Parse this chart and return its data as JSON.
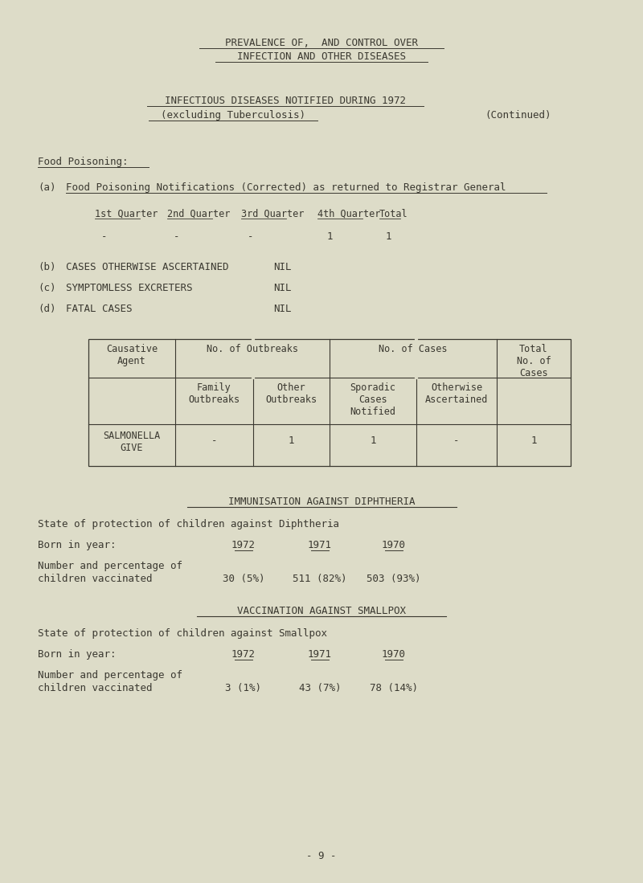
{
  "bg_color": "#dddcc8",
  "text_color": "#3a3830",
  "title1": "PREVALENCE OF,  AND CONTROL OVER",
  "title2": "INFECTION AND OTHER DISEASES",
  "subtitle1": "INFECTIOUS DISEASES NOTIFIED DURING 1972",
  "subtitle2": "(excluding Tuberculosis)",
  "continued": "(Continued)",
  "section_food": "Food Poisoning:",
  "section_a_label": "(a)",
  "section_a_text": "Food Poisoning Notifications (Corrected) as returned to Registrar General",
  "quarter_headers": [
    "1st Quarter",
    "2nd Quarter",
    "3rd Quarter",
    "4th Quarter",
    "Total"
  ],
  "quarter_values": [
    "-",
    "-",
    "-",
    "1",
    "1"
  ],
  "section_b_label": "(b)",
  "section_b_text": "CASES OTHERWISE ASCERTAINED",
  "b_value": "NIL",
  "section_c_label": "(c)",
  "section_c_text": "SYMPTOMLESS EXCRETERS",
  "c_value": "NIL",
  "section_d_label": "(d)",
  "section_d_text": "FATAL CASES",
  "d_value": "NIL",
  "table_data": [
    "SALMONELLA\nGIVE",
    "-",
    "1",
    "1",
    "-",
    "1"
  ],
  "immunisation_title": "IMMUNISATION AGAINST DIPHTHERIA",
  "immunisation_state": "State of protection of children against Diphtheria",
  "born_in_year": "Born in year:",
  "diph_years": [
    "1972",
    "1971",
    "1970"
  ],
  "diph_label1": "Number and percentage of",
  "diph_label2": "children vaccinated",
  "diph_values": [
    "30 (5%)",
    "511 (82%)",
    "503 (93%)"
  ],
  "smallpox_title": "VACCINATION AGAINST SMALLPOX",
  "smallpox_state": "State of protection of children against Smallpox",
  "smallpox_years": [
    "1972",
    "1971",
    "1970"
  ],
  "smallpox_label1": "Number and percentage of",
  "smallpox_label2": "children vaccinated",
  "smallpox_values": [
    "3 (1%)",
    "43 (7%)",
    "78 (14%)"
  ],
  "page_number": "- 9 -"
}
